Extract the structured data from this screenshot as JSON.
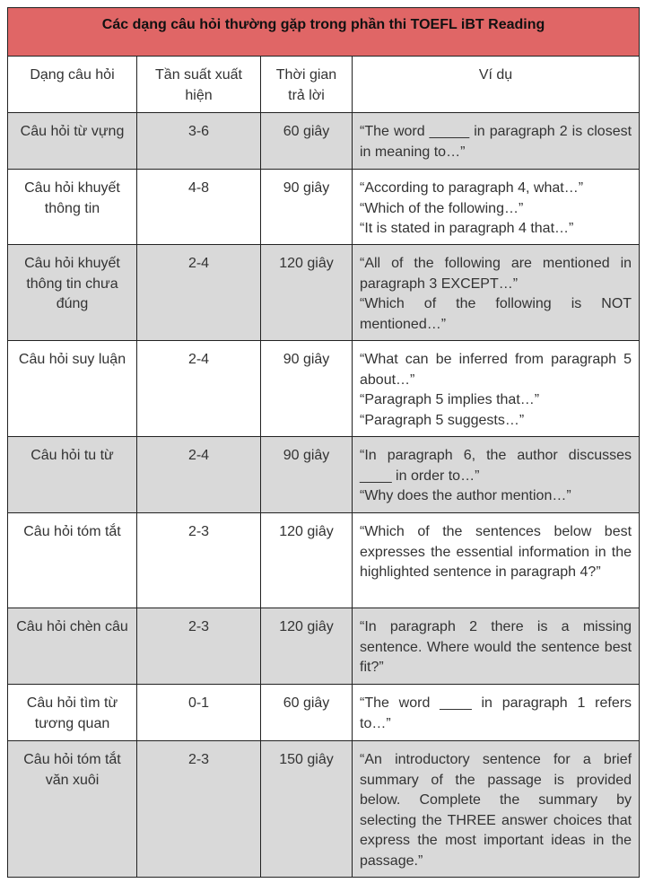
{
  "title": "Các dạng câu hỏi thường gặp trong phần thi TOEFL iBT Reading",
  "colors": {
    "title_bg": "#e06666",
    "alt_row_bg": "#d9d9d9"
  },
  "headers": [
    "Dạng câu hỏi",
    "Tần suất xuất hiện",
    "Thời gian trả lời",
    "Ví dụ"
  ],
  "rows": [
    {
      "type": "Câu hỏi từ vựng",
      "freq": "3-6",
      "time": "60 giây",
      "examples": [
        "“The word _____ in paragraph 2 is closest in meaning to…”"
      ]
    },
    {
      "type": "Câu hỏi khuyết thông tin",
      "freq": "4-8",
      "time": "90 giây",
      "examples": [
        "“According to paragraph 4, what…”",
        "“Which of the following…”",
        "“It is stated in paragraph 4 that…”"
      ]
    },
    {
      "type": "Câu hỏi khuyết thông tin chưa đúng",
      "freq": "2-4",
      "time": "120 giây",
      "examples": [
        "“All of the following are mentioned in paragraph 3 EXCEPT…”",
        "“Which of the following is NOT mentioned…”"
      ]
    },
    {
      "type": "Câu hỏi suy luận",
      "freq": "2-4",
      "time": "90 giây",
      "examples": [
        "“What can be inferred from paragraph 5 about…”",
        "“Paragraph 5 implies that…”",
        "“Paragraph 5 suggests…”"
      ]
    },
    {
      "type": "Câu hỏi tu từ",
      "freq": "2-4",
      "time": "90 giây",
      "examples": [
        "“In paragraph 6, the author discusses ____ in order to…”",
        "“Why does the author mention…”"
      ]
    },
    {
      "type": "Câu hỏi tóm tắt",
      "freq": "2-3",
      "time": "120 giây",
      "examples": [
        "“Which of the sentences below best expresses the essential information in the highlighted sentence in paragraph 4?”"
      ]
    },
    {
      "type": "Câu hỏi chèn câu",
      "freq": "2-3",
      "time": "120 giây",
      "examples": [
        "“In paragraph 2 there is a missing sentence. Where would the sentence best fit?”"
      ]
    },
    {
      "type": "Câu hỏi tìm từ tương quan",
      "freq": "0-1",
      "time": "60 giây",
      "examples": [
        "“The word ____ in paragraph 1 refers to…”"
      ]
    },
    {
      "type": "Câu hỏi tóm tắt văn xuôi",
      "freq": "2-3",
      "time": "150 giây",
      "examples": [
        "“An introductory sentence for a brief summary of the passage is provided below. Complete the summary by selecting the THREE answer choices that express the most important ideas in the passage.”"
      ]
    }
  ]
}
